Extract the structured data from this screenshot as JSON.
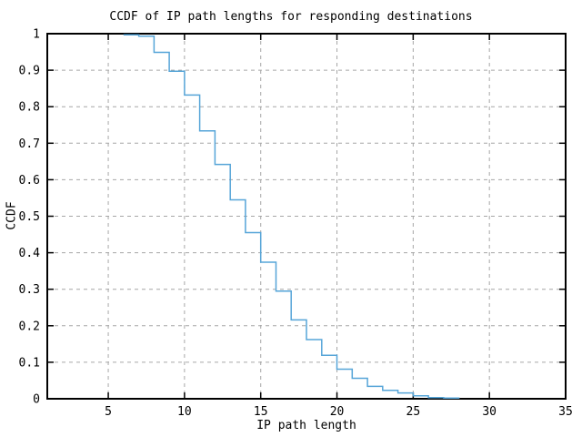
{
  "chart_data": {
    "type": "line",
    "subtype": "step-post",
    "title": "CCDF of IP path lengths for responding destinations",
    "xlabel": "IP path length",
    "ylabel": "CCDF",
    "xlim": [
      1,
      35
    ],
    "ylim": [
      0,
      1
    ],
    "grid": true,
    "legend": "none",
    "line_color": "#56a5d8",
    "grid_color": "#a6a6a6",
    "axis_color": "#000000",
    "xticks": [
      {
        "v": 5,
        "label": "5"
      },
      {
        "v": 10,
        "label": "10"
      },
      {
        "v": 15,
        "label": "15"
      },
      {
        "v": 20,
        "label": "20"
      },
      {
        "v": 25,
        "label": "25"
      },
      {
        "v": 30,
        "label": "30"
      },
      {
        "v": 35,
        "label": "35"
      }
    ],
    "yticks": [
      {
        "v": 0,
        "label": "0"
      },
      {
        "v": 0.1,
        "label": "0.1"
      },
      {
        "v": 0.2,
        "label": "0.2"
      },
      {
        "v": 0.3,
        "label": "0.3"
      },
      {
        "v": 0.4,
        "label": "0.4"
      },
      {
        "v": 0.5,
        "label": "0.5"
      },
      {
        "v": 0.6,
        "label": "0.6"
      },
      {
        "v": 0.7,
        "label": "0.7"
      },
      {
        "v": 0.8,
        "label": "0.8"
      },
      {
        "v": 0.9,
        "label": "0.9"
      },
      {
        "v": 1,
        "label": "1"
      }
    ],
    "x": [
      6,
      7,
      8,
      9,
      10,
      11,
      12,
      13,
      14,
      15,
      16,
      17,
      18,
      19,
      20,
      21,
      22,
      23,
      24,
      25,
      26,
      27,
      28
    ],
    "y": [
      0.997,
      0.993,
      0.949,
      0.897,
      0.832,
      0.734,
      0.642,
      0.545,
      0.455,
      0.374,
      0.295,
      0.216,
      0.162,
      0.119,
      0.081,
      0.056,
      0.034,
      0.023,
      0.016,
      0.008,
      0.003,
      0.002,
      0.0
    ]
  }
}
